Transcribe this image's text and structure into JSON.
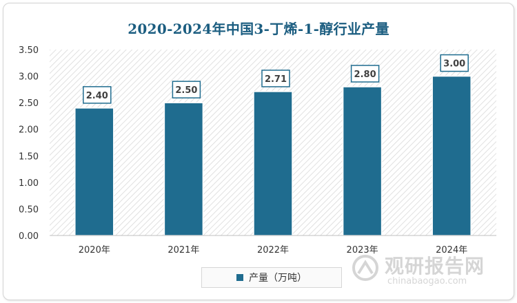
{
  "chart_data": {
    "type": "bar",
    "title": "2020-2024年中国3-丁烯-1-醇行业产量",
    "categories": [
      "2020年",
      "2021年",
      "2022年",
      "2023年",
      "2024年"
    ],
    "series": [
      {
        "name": "产量（万吨）",
        "values": [
          2.4,
          2.5,
          2.71,
          2.8,
          3.0
        ]
      }
    ],
    "data_labels": [
      "2.40",
      "2.50",
      "2.71",
      "2.80",
      "3.00"
    ],
    "y_ticks": [
      "0.00",
      "0.50",
      "1.00",
      "1.50",
      "2.00",
      "2.50",
      "3.00",
      "3.50"
    ],
    "ylim": [
      0,
      3.5
    ],
    "xlabel": "",
    "ylabel": "",
    "legend_position": "bottom",
    "grid": false,
    "bar_color": "#1f6c8f",
    "title_color": "#1b5d80"
  },
  "watermark": {
    "name": "观研报告网",
    "url": "chinabaogao.com"
  }
}
